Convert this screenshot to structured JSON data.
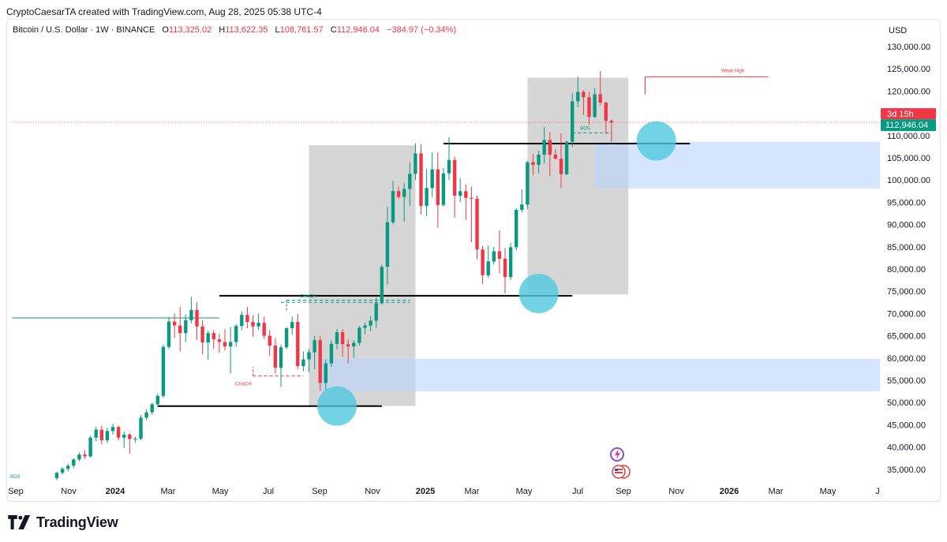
{
  "header": {
    "credit": "CryptoCaesarTA created with TradingView.com, Aug 28, 2025 05:38 UTC-4"
  },
  "legend": {
    "symbol": "Bitcoin / U.S. Dollar · 1W · BINANCE",
    "open_key": "O",
    "open": "113,325.02",
    "high_key": "H",
    "high": "113,622.35",
    "low_key": "L",
    "low": "108,761.57",
    "close_key": "C",
    "close": "112,946.04",
    "change": "−384.97 (−0.34%)"
  },
  "price_scale": {
    "currency": "USD",
    "countdown": "3d 15h",
    "last_price": "112,946.04"
  },
  "brand": {
    "name": "TradingView"
  },
  "colors": {
    "up": "#089981",
    "down": "#f23645",
    "zone_gray": "#d1d1d1",
    "zone_blue": "#cfe2ff",
    "circle": "#4fc8df",
    "level_line": "#000000"
  },
  "chart_data": {
    "type": "candlestick",
    "x_ticks": [
      "Sep",
      "Nov",
      "2024",
      "Mar",
      "May",
      "Jul",
      "Sep",
      "Nov",
      "2025",
      "Mar",
      "May",
      "Jul",
      "Sep",
      "Nov",
      "2026",
      "Mar",
      "May",
      "J"
    ],
    "y_ticks": [
      130000,
      125000,
      120000,
      115000,
      110000,
      105000,
      100000,
      95000,
      90000,
      85000,
      80000,
      75000,
      70000,
      65000,
      60000,
      55000,
      50000,
      45000,
      40000,
      35000
    ],
    "y_tick_labels": [
      "130,000.00",
      "125,000.00",
      "120,000.00",
      "115,000.00",
      "110,000.00",
      "105,000.00",
      "100,000.00",
      "95,000.00",
      "90,000.00",
      "85,000.00",
      "80,000.00",
      "75,000.00",
      "70,000.00",
      "65,000.00",
      "60,000.00",
      "55,000.00",
      "50,000.00",
      "45,000.00",
      "40,000.00",
      "35,000.00"
    ],
    "ylim": [
      31000,
      133000
    ],
    "series": [
      {
        "interval": "1W",
        "ohlc": [
          [
            33000,
            34500,
            32500,
            34200
          ],
          [
            34200,
            35500,
            33800,
            35100
          ],
          [
            35100,
            36200,
            34500,
            35800
          ],
          [
            35800,
            37500,
            35200,
            37200
          ],
          [
            37200,
            38800,
            36800,
            38300
          ],
          [
            38300,
            39300,
            37300,
            37900
          ],
          [
            37900,
            42500,
            37600,
            42100
          ],
          [
            42100,
            44600,
            41300,
            43900
          ],
          [
            43900,
            44800,
            40600,
            41500
          ],
          [
            41500,
            44300,
            40900,
            43600
          ],
          [
            43600,
            45200,
            42800,
            44500
          ],
          [
            44500,
            44800,
            41500,
            42100
          ],
          [
            42100,
            43500,
            39800,
            42800
          ],
          [
            42800,
            43100,
            38500,
            41800
          ],
          [
            41800,
            42300,
            41000,
            41900
          ],
          [
            41900,
            47200,
            41500,
            46600
          ],
          [
            46600,
            48500,
            46000,
            47800
          ],
          [
            47800,
            50000,
            47200,
            49600
          ],
          [
            49600,
            52000,
            49000,
            51500
          ],
          [
            51500,
            63000,
            51100,
            62500
          ],
          [
            62500,
            69200,
            62000,
            68200
          ],
          [
            68200,
            70000,
            64500,
            67300
          ],
          [
            67300,
            71500,
            61500,
            65600
          ],
          [
            65600,
            69800,
            63600,
            68500
          ],
          [
            68500,
            73750,
            67800,
            70800
          ],
          [
            70800,
            72500,
            64000,
            67100
          ],
          [
            67100,
            68500,
            60800,
            63500
          ],
          [
            63500,
            66200,
            59600,
            65600
          ],
          [
            65600,
            66300,
            62000,
            64200
          ],
          [
            64200,
            65400,
            61200,
            63600
          ],
          [
            63600,
            66500,
            61700,
            62600
          ],
          [
            62600,
            67000,
            56500,
            63600
          ],
          [
            63600,
            67600,
            62500,
            67200
          ],
          [
            67200,
            70500,
            66200,
            69700
          ],
          [
            69700,
            71500,
            66700,
            68100
          ],
          [
            68100,
            69600,
            64800,
            67100
          ],
          [
            67100,
            70000,
            66300,
            67900
          ],
          [
            67900,
            69300,
            64300,
            65000
          ],
          [
            65000,
            66300,
            60500,
            62800
          ],
          [
            62800,
            64500,
            56500,
            57800
          ],
          [
            57800,
            63000,
            53500,
            62400
          ],
          [
            62400,
            67000,
            62000,
            66700
          ],
          [
            66700,
            69300,
            65200,
            68100
          ],
          [
            68100,
            69900,
            57500,
            58200
          ],
          [
            58200,
            61500,
            57000,
            59700
          ],
          [
            59700,
            62000,
            56800,
            61300
          ],
          [
            61300,
            65000,
            57500,
            64000
          ],
          [
            64000,
            65000,
            52600,
            54400
          ],
          [
            54400,
            59700,
            52800,
            58800
          ],
          [
            58800,
            64000,
            58000,
            63200
          ],
          [
            63200,
            66500,
            62000,
            65800
          ],
          [
            65800,
            66500,
            60300,
            63100
          ],
          [
            63100,
            64200,
            58800,
            62600
          ],
          [
            62600,
            64000,
            60000,
            63400
          ],
          [
            63400,
            67200,
            62800,
            66800
          ],
          [
            66800,
            68000,
            65300,
            67300
          ],
          [
            67300,
            69500,
            66000,
            68400
          ],
          [
            68400,
            73600,
            66800,
            72300
          ],
          [
            72300,
            81000,
            72000,
            80500
          ],
          [
            80500,
            94000,
            76500,
            90500
          ],
          [
            90500,
            99800,
            90000,
            97500
          ],
          [
            97500,
            98500,
            95700,
            96200
          ],
          [
            96200,
            99300,
            90700,
            98000
          ],
          [
            98000,
            104000,
            94200,
            101400
          ],
          [
            101400,
            108300,
            100000,
            106000
          ],
          [
            106000,
            108000,
            92300,
            94200
          ],
          [
            94200,
            102500,
            91900,
            98200
          ],
          [
            98200,
            106300,
            96200,
            102400
          ],
          [
            102400,
            106200,
            89300,
            94400
          ],
          [
            94400,
            102700,
            94000,
            101500
          ],
          [
            101500,
            109600,
            100000,
            104500
          ],
          [
            104500,
            105300,
            91500,
            96500
          ],
          [
            96500,
            100400,
            95000,
            97500
          ],
          [
            97500,
            99000,
            91000,
            96000
          ],
          [
            96000,
            98500,
            86000,
            95800
          ],
          [
            95800,
            96500,
            82200,
            84400
          ],
          [
            84400,
            85200,
            76600,
            78600
          ],
          [
            78600,
            85300,
            78000,
            81700
          ],
          [
            81700,
            85000,
            81000,
            84000
          ],
          [
            84000,
            88700,
            79000,
            82300
          ],
          [
            82300,
            84700,
            74500,
            78200
          ],
          [
            78200,
            85900,
            77500,
            84900
          ],
          [
            84900,
            93700,
            84200,
            93300
          ],
          [
            93300,
            97900,
            92700,
            94500
          ],
          [
            94500,
            104300,
            93500,
            104000
          ],
          [
            104000,
            105800,
            101100,
            103400
          ],
          [
            103400,
            106600,
            101500,
            105700
          ],
          [
            105700,
            111900,
            103700,
            109000
          ],
          [
            109000,
            110800,
            100900,
            105700
          ],
          [
            105700,
            106900,
            104600,
            104800
          ],
          [
            104800,
            110500,
            98200,
            101300
          ],
          [
            101300,
            108800,
            101100,
            108600
          ],
          [
            108600,
            119500,
            107400,
            117700
          ],
          [
            117700,
            123200,
            116400,
            119800
          ],
          [
            119800,
            120200,
            114600,
            118600
          ],
          [
            118600,
            119800,
            112500,
            114200
          ],
          [
            114200,
            120600,
            113900,
            119300
          ],
          [
            119300,
            124500,
            116800,
            117400
          ],
          [
            117400,
            117600,
            110300,
            113325
          ],
          [
            113325,
            113622,
            108761,
            112946
          ]
        ]
      }
    ],
    "annotations": {
      "bos_low": "BOS",
      "bos_high": "BOS",
      "choch_top": "CHoCH",
      "choch_bottom": "CHoCH",
      "weak_high": "Weak High"
    },
    "zones": {
      "gray": [
        {
          "start_index": 45,
          "end_index": 64,
          "top": 107800,
          "bottom": 49200
        },
        {
          "start_index": 84,
          "end_index": 102,
          "top": 123000,
          "bottom": 74300
        }
      ],
      "blue": [
        {
          "start_index": 47,
          "end_index": 152,
          "top": 59800,
          "bottom": 52500
        },
        {
          "start_index": 96,
          "end_index": 152,
          "top": 108600,
          "bottom": 98100
        }
      ]
    },
    "levels": [
      {
        "y": 49200,
        "start_index": 18,
        "end_index": 58,
        "color": "#000000"
      },
      {
        "y": 74000,
        "start_index": 29,
        "end_index": 92,
        "color": "#000000"
      },
      {
        "y": 108200,
        "start_index": 69,
        "end_index": 113,
        "color": "#000000"
      },
      {
        "y": 69000,
        "start_index": -8,
        "end_index": 29,
        "color": "#089981"
      },
      {
        "y": 123200,
        "start_index": 105,
        "end_index": 127,
        "color": "#f23645"
      },
      {
        "y": 112946,
        "start_index": -8,
        "end_index": 152,
        "color": "#f23645",
        "dotted": true
      },
      {
        "y": 73000,
        "start_index": 41,
        "end_index": 63,
        "color": "#089981",
        "dashed": true
      },
      {
        "y": 72500,
        "start_index": 40,
        "end_index": 63,
        "color": "#089981",
        "dashed": true
      },
      {
        "y": 56000,
        "start_index": 35,
        "end_index": 44,
        "color": "#f23645",
        "dashed": true
      },
      {
        "y": 110600,
        "start_index": 92,
        "end_index": 99,
        "color": "#089981",
        "dashed": true
      }
    ],
    "circles": [
      {
        "index": 50,
        "y": 49200
      },
      {
        "index": 86,
        "y": 74500
      },
      {
        "index": 107,
        "y": 108800
      }
    ],
    "grid": false,
    "legend_position": "top-left"
  }
}
